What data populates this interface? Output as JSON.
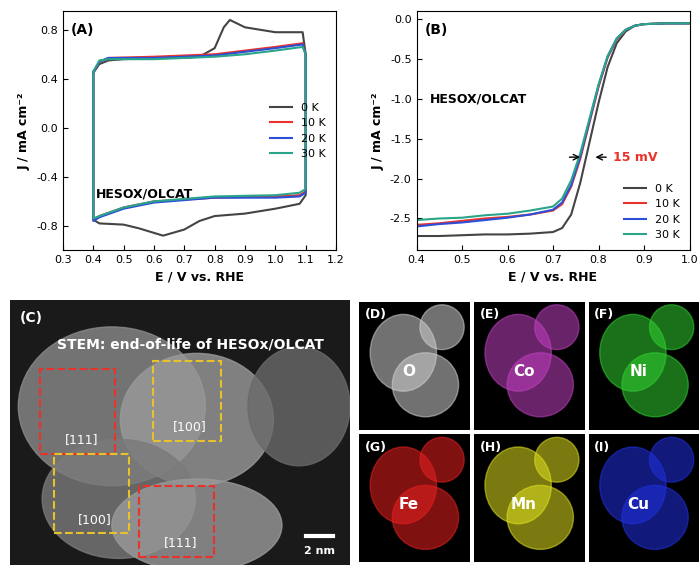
{
  "chart_data": [
    {
      "type": "line",
      "panel": "(A)",
      "annotations": [
        {
          "text": "HESOX/OLCAT"
        }
      ],
      "xlabel": "E / V vs. RHE",
      "ylabel": "J / mA cm⁻²",
      "xlim": [
        0.3,
        1.2
      ],
      "xticks": [
        0.3,
        0.4,
        0.5,
        0.6,
        0.7,
        0.8,
        0.9,
        1.0,
        1.1,
        1.2
      ],
      "ylim": [
        -1.0,
        0.95
      ],
      "yticks": [
        -0.8,
        -0.4,
        0.0,
        0.4,
        0.8
      ],
      "legend": "center right",
      "series": [
        {
          "name": "0 K",
          "color": "#444444",
          "x": [
            0.4,
            0.42,
            0.45,
            0.5,
            0.6,
            0.7,
            0.75,
            0.8,
            0.83,
            0.85,
            0.9,
            0.95,
            1.0,
            1.05,
            1.09,
            1.1,
            1.1,
            1.08,
            1.0,
            0.9,
            0.8,
            0.75,
            0.7,
            0.63,
            0.55,
            0.5,
            0.42,
            0.4,
            0.4
          ],
          "values": [
            0.45,
            0.52,
            0.55,
            0.56,
            0.57,
            0.57,
            0.58,
            0.65,
            0.82,
            0.88,
            0.82,
            0.8,
            0.78,
            0.78,
            0.78,
            0.6,
            -0.55,
            -0.62,
            -0.66,
            -0.7,
            -0.72,
            -0.76,
            -0.83,
            -0.88,
            -0.82,
            -0.79,
            -0.78,
            -0.75,
            0.45
          ]
        },
        {
          "name": "10 K",
          "color": "#e8322a",
          "x": [
            0.4,
            0.42,
            0.45,
            0.6,
            0.8,
            0.9,
            1.0,
            1.09,
            1.1,
            1.1,
            1.08,
            1.0,
            0.8,
            0.6,
            0.5,
            0.42,
            0.4,
            0.4
          ],
          "values": [
            0.45,
            0.54,
            0.57,
            0.58,
            0.6,
            0.63,
            0.66,
            0.69,
            0.6,
            -0.52,
            -0.55,
            -0.56,
            -0.57,
            -0.6,
            -0.65,
            -0.72,
            -0.75,
            0.45
          ]
        },
        {
          "name": "20 K",
          "color": "#2d4fd8",
          "x": [
            0.4,
            0.42,
            0.45,
            0.6,
            0.8,
            0.9,
            1.0,
            1.09,
            1.1,
            1.1,
            1.08,
            1.0,
            0.8,
            0.6,
            0.5,
            0.42,
            0.4,
            0.4
          ],
          "values": [
            0.45,
            0.54,
            0.57,
            0.57,
            0.59,
            0.62,
            0.65,
            0.68,
            0.6,
            -0.53,
            -0.56,
            -0.57,
            -0.57,
            -0.61,
            -0.66,
            -0.73,
            -0.76,
            0.45
          ]
        },
        {
          "name": "30 K",
          "color": "#2aa58a",
          "x": [
            0.4,
            0.42,
            0.45,
            0.6,
            0.8,
            0.9,
            1.0,
            1.09,
            1.1,
            1.1,
            1.08,
            1.0,
            0.8,
            0.6,
            0.5,
            0.42,
            0.4,
            0.4
          ],
          "values": [
            0.46,
            0.55,
            0.56,
            0.56,
            0.58,
            0.6,
            0.63,
            0.66,
            0.6,
            -0.5,
            -0.53,
            -0.55,
            -0.56,
            -0.6,
            -0.65,
            -0.72,
            -0.74,
            0.46
          ]
        }
      ]
    },
    {
      "type": "line",
      "panel": "(B)",
      "annotations": [
        {
          "text": "HESOX/OLCAT"
        },
        {
          "text": "15 mV",
          "color": "#e8322a"
        }
      ],
      "xlabel": "E / V vs. RHE",
      "ylabel": "J / mA cm⁻²",
      "xlim": [
        0.4,
        1.0
      ],
      "xticks": [
        0.4,
        0.5,
        0.6,
        0.7,
        0.8,
        0.9,
        1.0
      ],
      "ylim": [
        -2.9,
        0.1
      ],
      "yticks": [
        -2.5,
        -2.0,
        -1.5,
        -1.0,
        -0.5,
        0.0
      ],
      "legend": "lower right",
      "series": [
        {
          "name": "0 K",
          "color": "#444444",
          "x": [
            0.4,
            0.45,
            0.5,
            0.55,
            0.6,
            0.65,
            0.7,
            0.72,
            0.74,
            0.76,
            0.78,
            0.8,
            0.82,
            0.84,
            0.86,
            0.88,
            0.9,
            0.95,
            1.0
          ],
          "values": [
            -2.72,
            -2.72,
            -2.71,
            -2.7,
            -2.7,
            -2.69,
            -2.67,
            -2.62,
            -2.45,
            -2.05,
            -1.55,
            -1.05,
            -0.6,
            -0.3,
            -0.15,
            -0.08,
            -0.06,
            -0.05,
            -0.05
          ]
        },
        {
          "name": "10 K",
          "color": "#e8322a",
          "x": [
            0.4,
            0.45,
            0.5,
            0.55,
            0.6,
            0.65,
            0.7,
            0.72,
            0.74,
            0.76,
            0.78,
            0.8,
            0.82,
            0.84,
            0.86,
            0.88,
            0.9,
            0.95,
            1.0
          ],
          "values": [
            -2.58,
            -2.56,
            -2.53,
            -2.5,
            -2.48,
            -2.45,
            -2.4,
            -2.32,
            -2.1,
            -1.75,
            -1.3,
            -0.85,
            -0.48,
            -0.25,
            -0.13,
            -0.08,
            -0.06,
            -0.05,
            -0.05
          ]
        },
        {
          "name": "20 K",
          "color": "#2d4fd8",
          "x": [
            0.4,
            0.45,
            0.5,
            0.55,
            0.6,
            0.65,
            0.7,
            0.72,
            0.74,
            0.76,
            0.78,
            0.8,
            0.82,
            0.84,
            0.86,
            0.88,
            0.9,
            0.95,
            1.0
          ],
          "values": [
            -2.6,
            -2.57,
            -2.55,
            -2.52,
            -2.49,
            -2.45,
            -2.39,
            -2.3,
            -2.08,
            -1.72,
            -1.28,
            -0.83,
            -0.47,
            -0.24,
            -0.13,
            -0.08,
            -0.06,
            -0.05,
            -0.05
          ]
        },
        {
          "name": "30 K",
          "color": "#2aa58a",
          "x": [
            0.4,
            0.45,
            0.5,
            0.55,
            0.6,
            0.65,
            0.7,
            0.72,
            0.74,
            0.76,
            0.78,
            0.8,
            0.82,
            0.84,
            0.86,
            0.88,
            0.9,
            0.95,
            1.0
          ],
          "values": [
            -2.52,
            -2.5,
            -2.49,
            -2.46,
            -2.44,
            -2.4,
            -2.35,
            -2.25,
            -2.02,
            -1.68,
            -1.25,
            -0.82,
            -0.46,
            -0.24,
            -0.13,
            -0.08,
            -0.06,
            -0.05,
            -0.05
          ]
        }
      ]
    }
  ],
  "images": {
    "stem": {
      "panel": "(C)",
      "title": "STEM: end-of-life of HESOx/OLCAT",
      "regions": [
        {
          "label": "[111]",
          "color": "#e8322a"
        },
        {
          "label": "[100]",
          "color": "#e8c22a"
        },
        {
          "label": "[100]",
          "color": "#e8c22a"
        },
        {
          "label": "[111]",
          "color": "#e8322a"
        }
      ],
      "scale_bar": "2 nm"
    },
    "maps": [
      {
        "panel": "(D)",
        "element": "O",
        "color": "#cfcfcf"
      },
      {
        "panel": "(E)",
        "element": "Co",
        "color": "#c040c0"
      },
      {
        "panel": "(F)",
        "element": "Ni",
        "color": "#30d030"
      },
      {
        "panel": "(G)",
        "element": "Fe",
        "color": "#e82020"
      },
      {
        "panel": "(H)",
        "element": "Mn",
        "color": "#e0e020"
      },
      {
        "panel": "(I)",
        "element": "Cu",
        "color": "#2030e0"
      }
    ]
  }
}
